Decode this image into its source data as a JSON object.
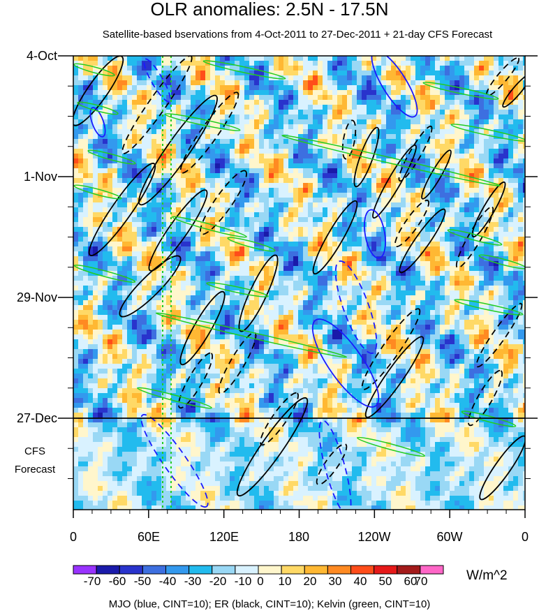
{
  "chart_data": {
    "type": "heatmap",
    "title": "OLR anomalies: 2.5N - 17.5N",
    "subtitle": "Satellite-based bservations from 4-Oct-2011 to 27-Dec-2011 + 21-day CFS Forecast",
    "y_labels": [
      "4-Oct",
      "1-Nov",
      "29-Nov",
      "27-Dec"
    ],
    "x_labels": [
      "0",
      "60E",
      "120E",
      "180",
      "120W",
      "60W",
      "0"
    ],
    "xlim_deg_east": [
      0,
      360
    ],
    "forecast_label_lines": [
      "CFS",
      "Forecast"
    ],
    "forecast_start": "27-Dec",
    "forecast_days": 21,
    "colorbar": {
      "labels": [
        "-70",
        "-60",
        "-50",
        "-40",
        "-30",
        "-20",
        "-10",
        "0",
        "10",
        "20",
        "30",
        "40",
        "50",
        "60",
        "70"
      ],
      "colors": [
        "#9933ff",
        "#1a1aaa",
        "#2933cc",
        "#3d6fe0",
        "#3399ee",
        "#22bbee",
        "#99d8f5",
        "#d9f2ff",
        "#fff6cc",
        "#ffd966",
        "#ffb833",
        "#ff8a22",
        "#ff4d1a",
        "#e61919",
        "#a31a1a",
        "#ff66c7"
      ],
      "unit": "W/m^2"
    },
    "overlays_note": "MJO (blue, CINT=10); ER (black, CINT=10); Kelvin (green, CINT=10)",
    "overlay_colors": {
      "MJO": "#1a1aff",
      "ER": "#000000",
      "Kelvin": "#22cc22"
    },
    "grid": false
  }
}
